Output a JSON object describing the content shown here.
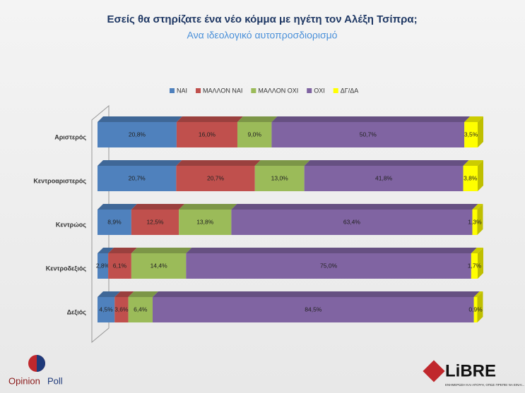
{
  "chart_data": {
    "type": "stacked-bar-horizontal",
    "title": "Εσείς θα στηρίζατε  ένα νέο κόμμα με ηγέτη τον Αλέξη Τσίπρα;",
    "subtitle": "Ανα ιδεολογικό αυτοπροσδιορισμό",
    "categories": [
      "Αριστερός",
      "Κεντροαριστερός",
      "Κεντρώος",
      "Κεντροδεξιός",
      "Δεξιός"
    ],
    "xlim": [
      0,
      100
    ],
    "legend": "top",
    "series": [
      {
        "name": "ΝΑΙ",
        "color": "#4f81bd",
        "values": [
          20.8,
          20.7,
          8.9,
          2.8,
          4.5
        ],
        "value_labels": [
          "20,8%",
          "20,7%",
          "8,9%",
          "2,8%",
          "4,5%"
        ]
      },
      {
        "name": "ΜΑΛΛΟΝ ΝΑΙ",
        "color": "#c0504d",
        "values": [
          16.0,
          20.7,
          12.5,
          6.1,
          3.6
        ],
        "value_labels": [
          "16,0%",
          "20,7%",
          "12,5%",
          "6,1%",
          "3,6%"
        ]
      },
      {
        "name": "ΜΑΛΛΟΝ ΟΧΙ",
        "color": "#9bbb59",
        "values": [
          9.0,
          13.0,
          13.8,
          14.4,
          6.4
        ],
        "value_labels": [
          "9,0%",
          "13,0%",
          "13,8%",
          "14,4%",
          "6,4%"
        ]
      },
      {
        "name": "ΟΧΙ",
        "color": "#8064a2",
        "values": [
          50.7,
          41.8,
          63.4,
          75.0,
          84.5
        ],
        "value_labels": [
          "50,7%",
          "41,8%",
          "63,4%",
          "75,0%",
          "84,5%"
        ]
      },
      {
        "name": "ΔΓ/ΔΑ",
        "color": "#ffff00",
        "values": [
          3.5,
          3.8,
          1.3,
          1.7,
          0.9
        ],
        "value_labels": [
          "3,5%",
          "3,8%",
          "1,3%",
          "1,7%",
          "0,9%"
        ]
      }
    ]
  },
  "logos": {
    "left_a": "Opinion",
    "left_b": "Poll",
    "right": "LiBRE",
    "right_tagline": "ΕΝΗΜΕΡΩΣΗ ΚΑΙ ΑΠΟΨΗ, ΟΠΩΣ ΠΡΕΠΕΙ ΝΑ ΕΙΝΑΙ..."
  }
}
